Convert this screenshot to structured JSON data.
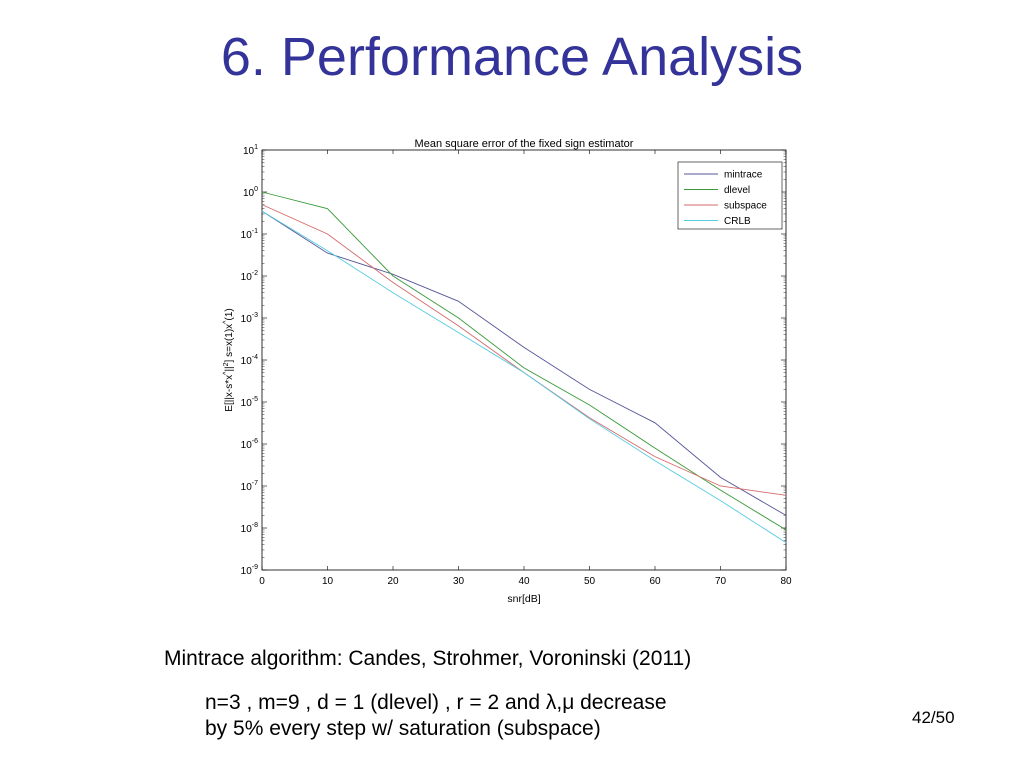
{
  "slide": {
    "title": "6. Performance Analysis",
    "caption": "Mintrace algorithm: Candes, Strohmer, Voroninski (2011)",
    "note_line1": "n=3 , m=9 , d = 1 (dlevel) , r = 2 and λ,μ decrease",
    "note_line2": "by 5% every step w/ saturation (subspace)",
    "page_number": "42/50"
  },
  "chart_data": {
    "type": "line",
    "title": "Mean square error of the fixed sign estimator",
    "xlabel": "snr[dB]",
    "ylabel": "E[||x-s*x^||²] s=x(1)x^(1)",
    "y_scale": "log",
    "xlim": [
      0,
      80
    ],
    "ylim_exponents": [
      -9,
      1
    ],
    "x_ticks": [
      "0",
      "10",
      "20",
      "30",
      "40",
      "50",
      "60",
      "70",
      "80"
    ],
    "y_tick_exponents": [
      1,
      0,
      -1,
      -2,
      -3,
      -4,
      -5,
      -6,
      -7,
      -8,
      -9
    ],
    "legend_position": "top-right",
    "x": [
      0,
      10,
      20,
      30,
      40,
      50,
      60,
      70,
      80
    ],
    "series": [
      {
        "name": "mintrace",
        "color": "#55559a",
        "values": [
          0.35,
          0.035,
          0.011,
          0.0025,
          0.0002,
          2e-05,
          3.2e-06,
          1.6e-07,
          2e-08
        ]
      },
      {
        "name": "dlevel",
        "color": "#3a9a3a",
        "values": [
          1.0,
          0.4,
          0.01,
          0.001,
          6.5e-05,
          8.5e-06,
          8e-07,
          8e-08,
          9e-09
        ]
      },
      {
        "name": "subspace",
        "color": "#d46a6a",
        "values": [
          0.5,
          0.1,
          0.007,
          0.00065,
          5e-05,
          4.2e-06,
          5e-07,
          1e-07,
          6e-08
        ]
      },
      {
        "name": "CRLB",
        "color": "#55cbe0",
        "values": [
          0.35,
          0.04,
          0.004,
          0.00045,
          5e-05,
          4e-06,
          4e-07,
          4.5e-08,
          4.5e-09
        ]
      }
    ]
  }
}
